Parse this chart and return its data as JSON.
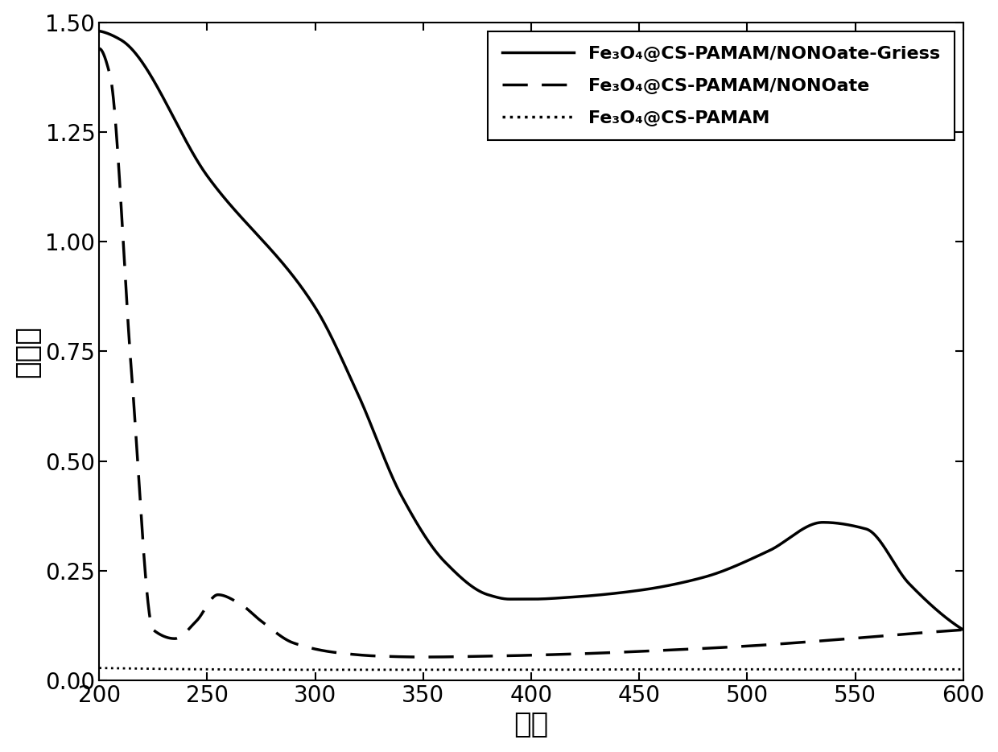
{
  "title": "",
  "xlabel": "波数",
  "ylabel": "吸光度",
  "xlim": [
    200,
    600
  ],
  "ylim": [
    0.0,
    1.5
  ],
  "xticks": [
    200,
    250,
    300,
    350,
    400,
    450,
    500,
    550,
    600
  ],
  "yticks": [
    0.0,
    0.25,
    0.5,
    0.75,
    1.0,
    1.25,
    1.5
  ],
  "line1_label": "Fe₃O₄@CS-PAMAM/NONOate-Griess",
  "line2_label": "Fe₃O₄@CS-PAMAM/NONOate",
  "line3_label": "Fe₃O₄@CS-PAMAM",
  "background_color": "#ffffff",
  "line_color": "#000000",
  "griess_keypoints_x": [
    200,
    210,
    250,
    300,
    320,
    340,
    360,
    380,
    390,
    400,
    420,
    450,
    480,
    510,
    535,
    555,
    575,
    600
  ],
  "griess_keypoints_y": [
    1.48,
    1.46,
    1.15,
    0.85,
    0.65,
    0.42,
    0.27,
    0.195,
    0.185,
    0.185,
    0.19,
    0.205,
    0.235,
    0.295,
    0.36,
    0.345,
    0.22,
    0.115
  ],
  "nonoate_keypoints_x": [
    200,
    205,
    215,
    225,
    235,
    245,
    255,
    265,
    275,
    290,
    310,
    330,
    350,
    380,
    420,
    460,
    500,
    540,
    580,
    600
  ],
  "nonoate_keypoints_y": [
    1.44,
    1.38,
    0.7,
    0.115,
    0.095,
    0.135,
    0.195,
    0.175,
    0.135,
    0.085,
    0.063,
    0.055,
    0.053,
    0.055,
    0.06,
    0.068,
    0.078,
    0.092,
    0.108,
    0.115
  ],
  "pamam_keypoints_x": [
    200,
    250,
    300,
    350,
    400,
    450,
    500,
    550,
    600
  ],
  "pamam_keypoints_y": [
    0.028,
    0.025,
    0.024,
    0.024,
    0.024,
    0.025,
    0.025,
    0.025,
    0.025
  ]
}
